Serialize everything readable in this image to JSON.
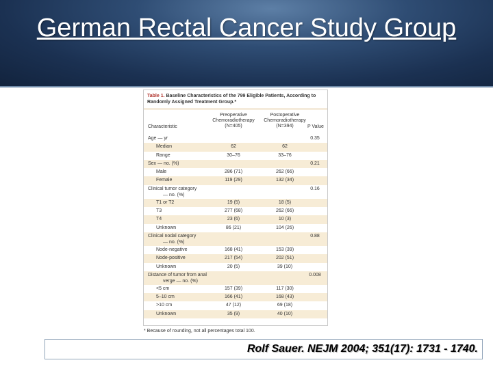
{
  "slide": {
    "title": "German Rectal Cancer Study Group",
    "citation": "Rolf Sauer. NEJM 2004; 351(17): 1731 - 1740."
  },
  "table": {
    "caption_label": "Table 1.",
    "caption_text": "Baseline Characteristics of the 799 Eligible Patients, According to Randomly Assigned Treatment Group.*",
    "headers": {
      "characteristic": "Characteristic",
      "preop": "Preoperative Chemoradiotherapy (N=405)",
      "postop": "Postoperative Chemoradiotherapy (N=394)",
      "p": "P Value"
    },
    "rows": [
      {
        "c": "Age — yr",
        "v1": "",
        "v2": "",
        "p": "0.35"
      },
      {
        "c": "Median",
        "v1": "62",
        "v2": "62",
        "p": ""
      },
      {
        "c": "Range",
        "v1": "30–76",
        "v2": "33–76",
        "p": ""
      },
      {
        "c": "Sex — no. (%)",
        "v1": "",
        "v2": "",
        "p": "0.21"
      },
      {
        "c": "Male",
        "v1": "286 (71)",
        "v2": "262 (66)",
        "p": ""
      },
      {
        "c": "Female",
        "v1": "119 (29)",
        "v2": "132 (34)",
        "p": ""
      },
      {
        "c": "Clinical tumor category",
        "c2": "— no. (%)",
        "v1": "",
        "v2": "",
        "p": "0.16"
      },
      {
        "c": "T1 or T2",
        "v1": "19 (5)",
        "v2": "18 (5)",
        "p": ""
      },
      {
        "c": "T3",
        "v1": "277 (68)",
        "v2": "262 (66)",
        "p": ""
      },
      {
        "c": "T4",
        "v1": "23 (6)",
        "v2": "10 (3)",
        "p": ""
      },
      {
        "c": "Unknown",
        "v1": "86 (21)",
        "v2": "104 (26)",
        "p": ""
      },
      {
        "c": "Clinical nodal category",
        "c2": "— no. (%)",
        "v1": "",
        "v2": "",
        "p": "0.88"
      },
      {
        "c": "Node-negative",
        "v1": "168 (41)",
        "v2": "153 (39)",
        "p": ""
      },
      {
        "c": "Node-positive",
        "v1": "217 (54)",
        "v2": "202 (51)",
        "p": ""
      },
      {
        "c": "Unknown",
        "v1": "20 (5)",
        "v2": "39 (10)",
        "p": ""
      },
      {
        "c": "Distance of tumor from anal",
        "c2": "verge — no. (%)",
        "v1": "",
        "v2": "",
        "p": "0.008"
      },
      {
        "c": "<5 cm",
        "v1": "157 (39)",
        "v2": "117 (30)",
        "p": ""
      },
      {
        "c": "5–10 cm",
        "v1": "166 (41)",
        "v2": "168 (43)",
        "p": ""
      },
      {
        "c": ">10 cm",
        "v1": "47 (12)",
        "v2": "69 (18)",
        "p": ""
      },
      {
        "c": "Unknown",
        "v1": "35 (9)",
        "v2": "40 (10)",
        "p": ""
      }
    ],
    "footnote": "* Because of rounding, not all percentages total 100."
  }
}
